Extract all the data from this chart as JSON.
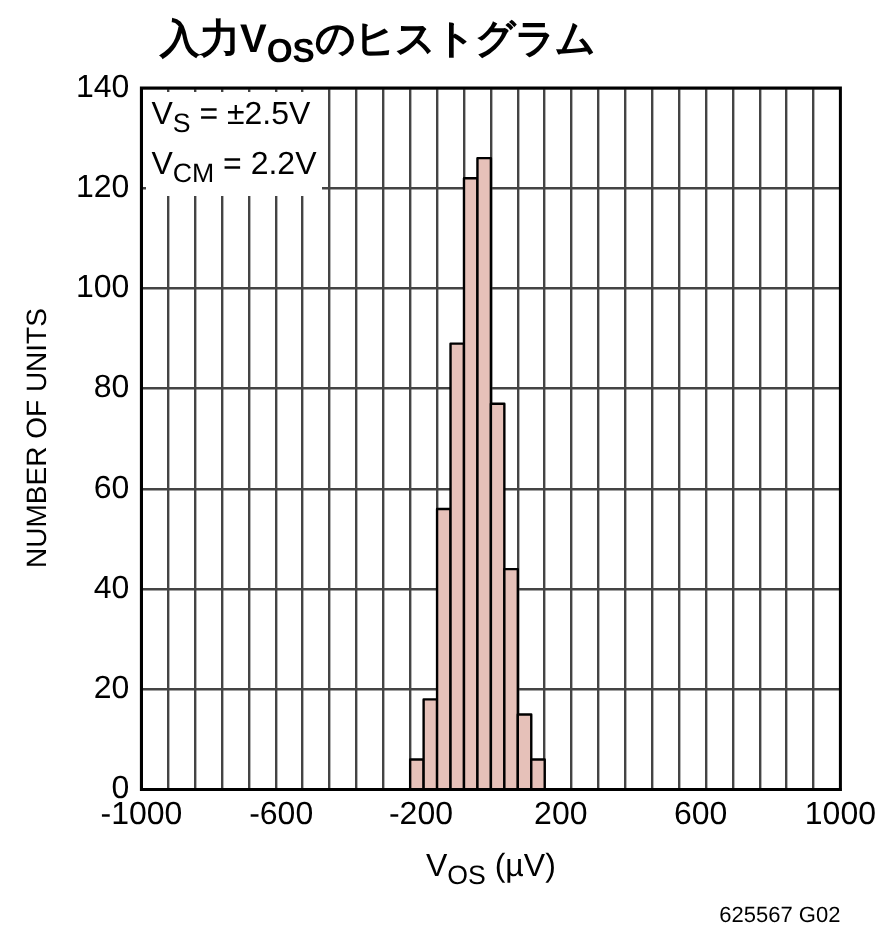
{
  "chart_data": {
    "type": "histogram",
    "title": "入力V$_{OS}$のヒストグラム",
    "xlabel": "V$_{OS}$ (µV)",
    "ylabel": "NUMBER OF UNITS",
    "annotations": [
      "V$_{S}$ = ±2.5V\nV$_{CM}$ = 2.2V",
      "625567 G02"
    ],
    "bins": [
      -231,
      -192.5,
      -154,
      -115.5,
      -77,
      -38.5,
      0,
      38.5,
      77,
      115.5,
      154
    ],
    "values": [
      6,
      18,
      56,
      89,
      122,
      126,
      77,
      44,
      15,
      6
    ],
    "color": "#e6c1b9",
    "xlim": [
      -1000,
      1000
    ],
    "xticks": [
      -1000,
      {
        "value": -923.1,
        "label": null
      },
      {
        "value": -846.2,
        "label": null
      },
      {
        "value": -769.2,
        "label": null
      },
      {
        "value": -692.3,
        "label": null
      },
      {
        "value": -615.4,
        "label": null
      },
      -600,
      {
        "value": -538.5,
        "label": null
      },
      {
        "value": -461.5,
        "label": null
      },
      {
        "value": -384.6,
        "label": null
      },
      {
        "value": -307.7,
        "label": null
      },
      {
        "value": -230.8,
        "label": null
      },
      -200,
      {
        "value": -153.8,
        "label": null
      },
      {
        "value": -76.9,
        "label": null
      },
      {
        "value": 0,
        "label": null
      },
      {
        "value": 76.9,
        "label": null
      },
      {
        "value": 153.8,
        "label": null
      },
      200,
      {
        "value": 230.8,
        "label": null
      },
      {
        "value": 307.7,
        "label": null
      },
      {
        "value": 384.6,
        "label": null
      },
      {
        "value": 461.5,
        "label": null
      },
      {
        "value": 538.5,
        "label": null
      },
      600,
      {
        "value": 615.4,
        "label": null
      },
      {
        "value": 692.3,
        "label": null
      },
      {
        "value": 769.2,
        "label": null
      },
      {
        "value": 846.2,
        "label": null
      },
      {
        "value": 923.1,
        "label": null
      },
      1000
    ],
    "ylim": [
      0,
      140
    ],
    "yticks": [
      0,
      20,
      40,
      60,
      80,
      100,
      120,
      140
    ],
    "grid": true,
    "legend": false
  }
}
